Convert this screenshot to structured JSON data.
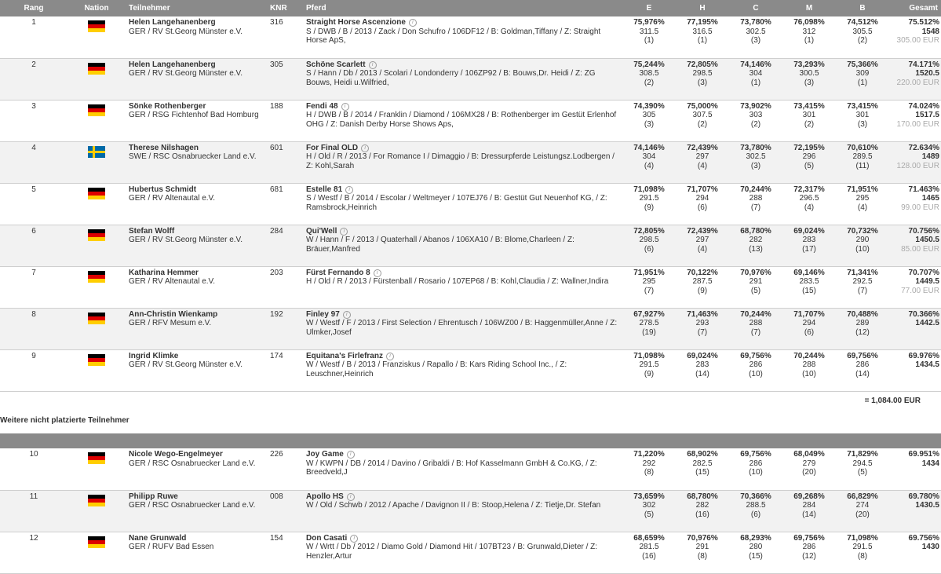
{
  "headers": [
    "Rang",
    "Nation",
    "Teilnehmer",
    "KNR",
    "Pferd",
    "E",
    "H",
    "C",
    "M",
    "B",
    "Gesamt"
  ],
  "placed": [
    {
      "rank": "1",
      "flag": "ger",
      "name": "Helen Langehanenberg",
      "club": "GER / RV St.Georg Münster e.V.",
      "knr": "316",
      "horse": "Straight Horse Ascenzione",
      "details": "S / DWB / B / 2013 / Zack / Don Schufro / 106DF12 / B: Goldman,Tiffany / Z: Straight Horse ApS,",
      "scores": [
        [
          "75,976%",
          "311.5",
          "(1)"
        ],
        [
          "77,195%",
          "316.5",
          "(1)"
        ],
        [
          "73,780%",
          "302.5",
          "(3)"
        ],
        [
          "76,098%",
          "312",
          "(1)"
        ],
        [
          "74,512%",
          "305.5",
          "(2)"
        ]
      ],
      "total_pct": "75.512%",
      "total": "1548",
      "prize": "305.00 EUR"
    },
    {
      "rank": "2",
      "flag": "ger",
      "name": "Helen Langehanenberg",
      "club": "GER / RV St.Georg Münster e.V.",
      "knr": "305",
      "horse": "Schöne Scarlett",
      "details": "S / Hann / Db / 2013 / Scolari / Londonderry / 106ZP92 / B: Bouws,Dr. Heidi / Z: ZG Bouws, Heidi u.Wilfried,",
      "scores": [
        [
          "75,244%",
          "308.5",
          "(2)"
        ],
        [
          "72,805%",
          "298.5",
          "(3)"
        ],
        [
          "74,146%",
          "304",
          "(1)"
        ],
        [
          "73,293%",
          "300.5",
          "(3)"
        ],
        [
          "75,366%",
          "309",
          "(1)"
        ]
      ],
      "total_pct": "74.171%",
      "total": "1520.5",
      "prize": "220.00 EUR"
    },
    {
      "rank": "3",
      "flag": "ger",
      "name": "Sönke Rothenberger",
      "club": "GER / RSG Fichtenhof Bad Homburg",
      "knr": "188",
      "horse": "Fendi 48",
      "details": "H / DWB / B / 2014 / Franklin / Diamond / 106MX28 / B: Rothenberger im Gestüt Erlenhof OHG / Z: Danish Derby Horse Shows Aps,",
      "scores": [
        [
          "74,390%",
          "305",
          "(3)"
        ],
        [
          "75,000%",
          "307.5",
          "(2)"
        ],
        [
          "73,902%",
          "303",
          "(2)"
        ],
        [
          "73,415%",
          "301",
          "(2)"
        ],
        [
          "73,415%",
          "301",
          "(3)"
        ]
      ],
      "total_pct": "74.024%",
      "total": "1517.5",
      "prize": "170.00 EUR"
    },
    {
      "rank": "4",
      "flag": "swe",
      "name": "Therese Nilshagen",
      "club": "SWE / RSC Osnabruecker Land e.V.",
      "knr": "601",
      "horse": "For Final OLD",
      "details": "H / Old / R / 2013 / For Romance I / Dimaggio / B: Dressurpferde Leistungsz.Lodbergen / Z: Kohl,Sarah",
      "scores": [
        [
          "74,146%",
          "304",
          "(4)"
        ],
        [
          "72,439%",
          "297",
          "(4)"
        ],
        [
          "73,780%",
          "302.5",
          "(3)"
        ],
        [
          "72,195%",
          "296",
          "(5)"
        ],
        [
          "70,610%",
          "289.5",
          "(11)"
        ]
      ],
      "total_pct": "72.634%",
      "total": "1489",
      "prize": "128.00 EUR"
    },
    {
      "rank": "5",
      "flag": "ger",
      "name": "Hubertus Schmidt",
      "club": "GER / RV Altenautal e.V.",
      "knr": "681",
      "horse": "Estelle 81",
      "details": "S / Westf / B / 2014 / Escolar / Weltmeyer / 107EJ76 / B: Gestüt Gut Neuenhof KG, / Z: Ramsbrock,Heinrich",
      "scores": [
        [
          "71,098%",
          "291.5",
          "(9)"
        ],
        [
          "71,707%",
          "294",
          "(6)"
        ],
        [
          "70,244%",
          "288",
          "(7)"
        ],
        [
          "72,317%",
          "296.5",
          "(4)"
        ],
        [
          "71,951%",
          "295",
          "(4)"
        ]
      ],
      "total_pct": "71.463%",
      "total": "1465",
      "prize": "99.00 EUR"
    },
    {
      "rank": "6",
      "flag": "ger",
      "name": "Stefan Wolff",
      "club": "GER / RV St.Georg Münster e.V.",
      "knr": "284",
      "horse": "Qui'Well",
      "details": "W / Hann / F / 2013 / Quaterhall / Abanos / 106XA10 / B: Blome,Charleen / Z: Bräuer,Manfred",
      "scores": [
        [
          "72,805%",
          "298.5",
          "(6)"
        ],
        [
          "72,439%",
          "297",
          "(4)"
        ],
        [
          "68,780%",
          "282",
          "(13)"
        ],
        [
          "69,024%",
          "283",
          "(17)"
        ],
        [
          "70,732%",
          "290",
          "(10)"
        ]
      ],
      "total_pct": "70.756%",
      "total": "1450.5",
      "prize": "85.00 EUR"
    },
    {
      "rank": "7",
      "flag": "ger",
      "name": "Katharina Hemmer",
      "club": "GER / RV Altenautal e.V.",
      "knr": "203",
      "horse": "Fürst Fernando 8",
      "details": "H / Old / R / 2013 / Fürstenball / Rosario / 107EP68 / B: Kohl,Claudia / Z: Wallner,Indira",
      "scores": [
        [
          "71,951%",
          "295",
          "(7)"
        ],
        [
          "70,122%",
          "287.5",
          "(9)"
        ],
        [
          "70,976%",
          "291",
          "(5)"
        ],
        [
          "69,146%",
          "283.5",
          "(15)"
        ],
        [
          "71,341%",
          "292.5",
          "(7)"
        ]
      ],
      "total_pct": "70.707%",
      "total": "1449.5",
      "prize": "77.00 EUR"
    },
    {
      "rank": "8",
      "flag": "ger",
      "name": "Ann-Christin Wienkamp",
      "club": "GER / RFV Mesum e.V.",
      "knr": "192",
      "horse": "Finley 97",
      "details": "W / Westf / F / 2013 / First Selection / Ehrentusch / 106WZ00 / B: Haggenmüller,Anne / Z: Ulmker,Josef",
      "scores": [
        [
          "67,927%",
          "278.5",
          "(19)"
        ],
        [
          "71,463%",
          "293",
          "(7)"
        ],
        [
          "70,244%",
          "288",
          "(7)"
        ],
        [
          "71,707%",
          "294",
          "(6)"
        ],
        [
          "70,488%",
          "289",
          "(12)"
        ]
      ],
      "total_pct": "70.366%",
      "total": "1442.5",
      "prize": ""
    },
    {
      "rank": "9",
      "flag": "ger",
      "name": "Ingrid Klimke",
      "club": "GER / RV St.Georg Münster e.V.",
      "knr": "174",
      "horse": "Equitana's Firlefranz",
      "details": "W / Westf / B / 2013 / Franziskus / Rapallo / B: Kars Riding School Inc., / Z: Leuschner,Heinrich",
      "scores": [
        [
          "71,098%",
          "291.5",
          "(9)"
        ],
        [
          "69,024%",
          "283",
          "(14)"
        ],
        [
          "69,756%",
          "286",
          "(10)"
        ],
        [
          "70,244%",
          "288",
          "(10)"
        ],
        [
          "69,756%",
          "286",
          "(14)"
        ]
      ],
      "total_pct": "69.976%",
      "total": "1434.5",
      "prize": ""
    }
  ],
  "prize_total": "= 1,084.00 EUR",
  "section_title": "Weitere nicht platzierte Teilnehmer",
  "unplaced": [
    {
      "rank": "10",
      "flag": "ger",
      "name": "Nicole Wego-Engelmeyer",
      "club": "GER / RSC Osnabruecker Land e.V.",
      "knr": "226",
      "horse": "Joy Game",
      "details": "W / KWPN / DB / 2014 / Davino / Gribaldi / B: Hof Kasselmann GmbH & Co.KG, / Z: Breedveld,J",
      "scores": [
        [
          "71,220%",
          "292",
          "(8)"
        ],
        [
          "68,902%",
          "282.5",
          "(15)"
        ],
        [
          "69,756%",
          "286",
          "(10)"
        ],
        [
          "68,049%",
          "279",
          "(20)"
        ],
        [
          "71,829%",
          "294.5",
          "(5)"
        ]
      ],
      "total_pct": "69.951%",
      "total": "1434"
    },
    {
      "rank": "11",
      "flag": "ger",
      "name": "Philipp Ruwe",
      "club": "GER / RSC Osnabruecker Land e.V.",
      "knr": "008",
      "horse": "Apollo HS",
      "details": "W / Old / Schwb / 2012 / Apache / Davignon II / B: Stoop,Helena / Z: Tietje,Dr. Stefan",
      "scores": [
        [
          "73,659%",
          "302",
          "(5)"
        ],
        [
          "68,780%",
          "282",
          "(16)"
        ],
        [
          "70,366%",
          "288.5",
          "(6)"
        ],
        [
          "69,268%",
          "284",
          "(14)"
        ],
        [
          "66,829%",
          "274",
          "(20)"
        ]
      ],
      "total_pct": "69.780%",
      "total": "1430.5"
    },
    {
      "rank": "12",
      "flag": "ger",
      "name": "Nane Grunwald",
      "club": "GER / RUFV Bad Essen",
      "knr": "154",
      "horse": "Don Casati",
      "details": "W / Wrtt / Db / 2012 / Diamo Gold / Diamond Hit / 107BT23 / B: Grunwald,Dieter / Z: Henzler,Artur",
      "scores": [
        [
          "68,659%",
          "281.5",
          "(16)"
        ],
        [
          "70,976%",
          "291",
          "(8)"
        ],
        [
          "68,293%",
          "280",
          "(15)"
        ],
        [
          "69,756%",
          "286",
          "(12)"
        ],
        [
          "71,098%",
          "291.5",
          "(8)"
        ]
      ],
      "total_pct": "69.756%",
      "total": "1430"
    }
  ],
  "info_glyph": "i"
}
